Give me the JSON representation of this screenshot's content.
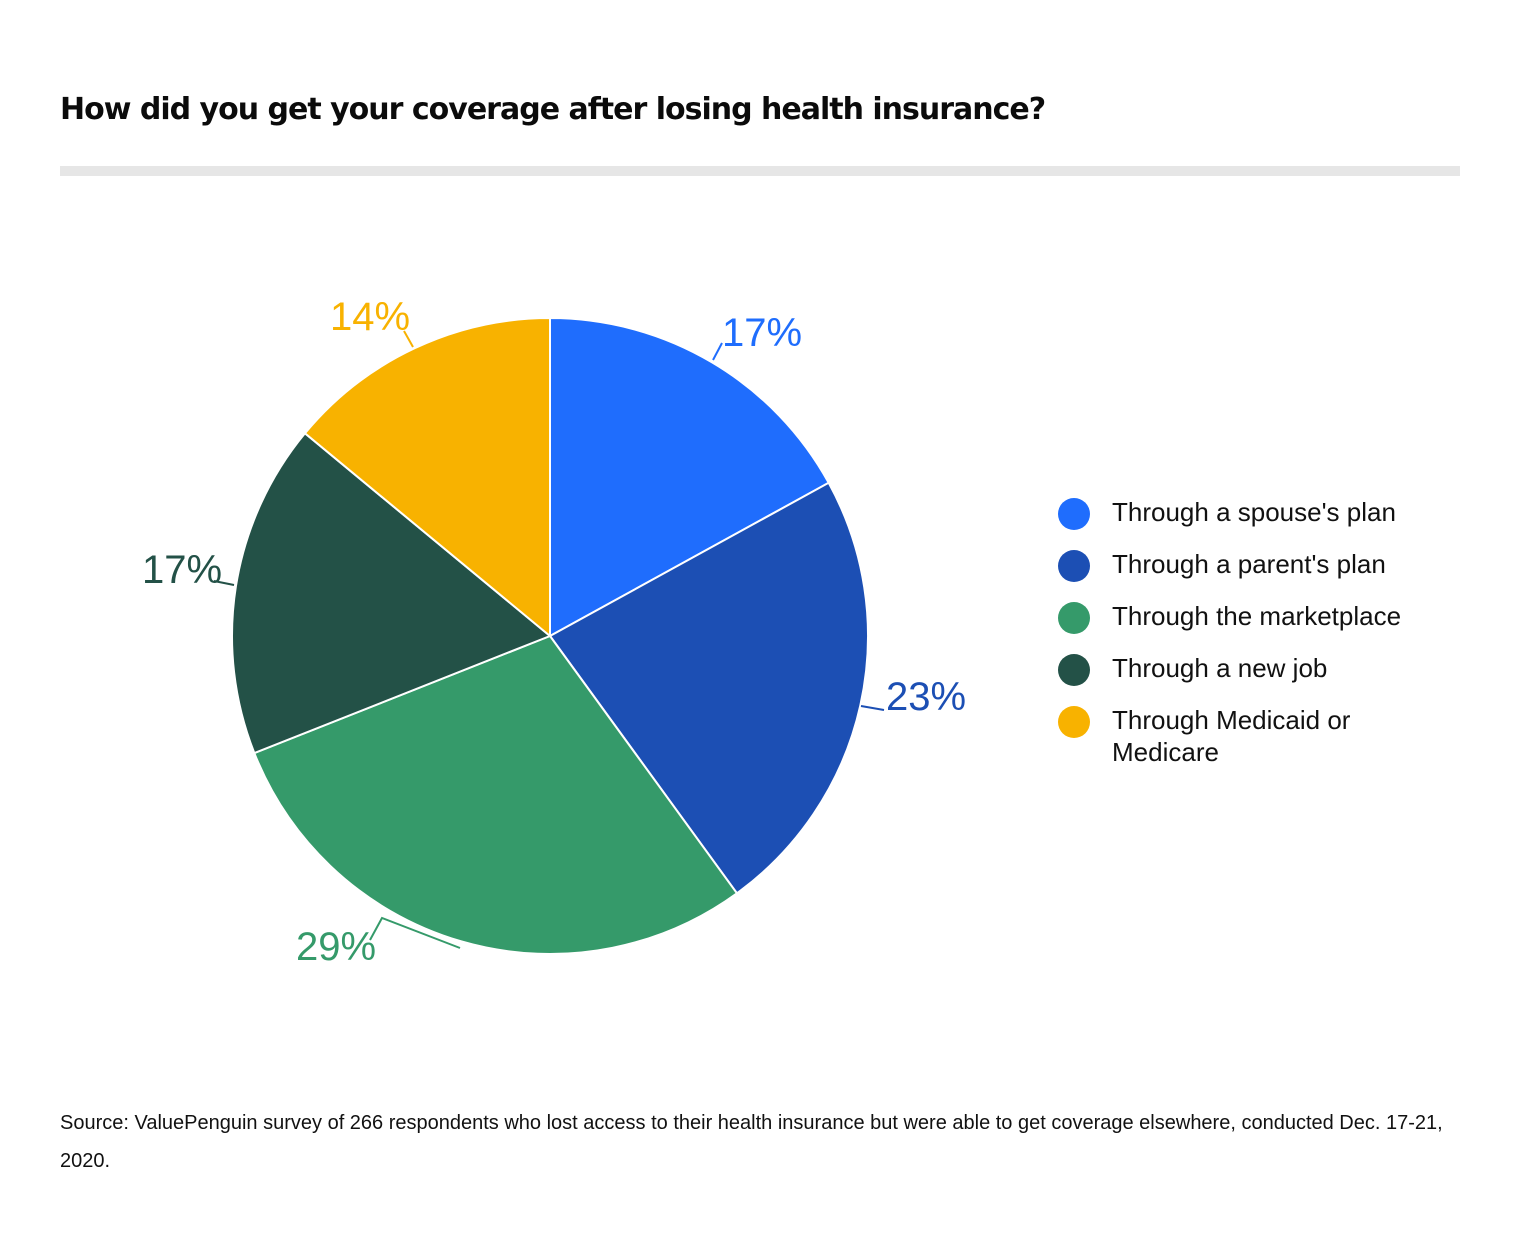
{
  "title": "How did you get your coverage after losing health insurance?",
  "source": "Source: ValuePenguin survey of 266 respondents who lost access to their health insurance but were able to get coverage elsewhere, conducted Dec. 17-21, 2020.",
  "chart_data": {
    "type": "pie",
    "title": "How did you get your coverage after losing health insurance?",
    "start_angle_deg": 0,
    "direction": "clockwise",
    "legend_position": "right",
    "slices": [
      {
        "name": "Through a spouse's plan",
        "value": 17,
        "label": "17%",
        "color": "#1f6dfd"
      },
      {
        "name": "Through a parent's plan",
        "value": 23,
        "label": "23%",
        "color": "#1c4fb4"
      },
      {
        "name": "Through the marketplace",
        "value": 29,
        "label": "29%",
        "color": "#359a6a"
      },
      {
        "name": "Through a new job",
        "value": 17,
        "label": "17%",
        "color": "#235147"
      },
      {
        "name": "Through Medicaid or Medicare",
        "value": 14,
        "label": "14%",
        "color": "#f8b200"
      }
    ]
  },
  "legend": {
    "items": [
      {
        "label": "Through a spouse's plan",
        "color": "#1f6dfd"
      },
      {
        "label": "Through a parent's plan",
        "color": "#1c4fb4"
      },
      {
        "label": "Through the marketplace",
        "color": "#359a6a"
      },
      {
        "label": "Through a new job",
        "color": "#235147"
      },
      {
        "label": "Through Medicaid or Medicare",
        "color": "#f8b200"
      }
    ]
  }
}
